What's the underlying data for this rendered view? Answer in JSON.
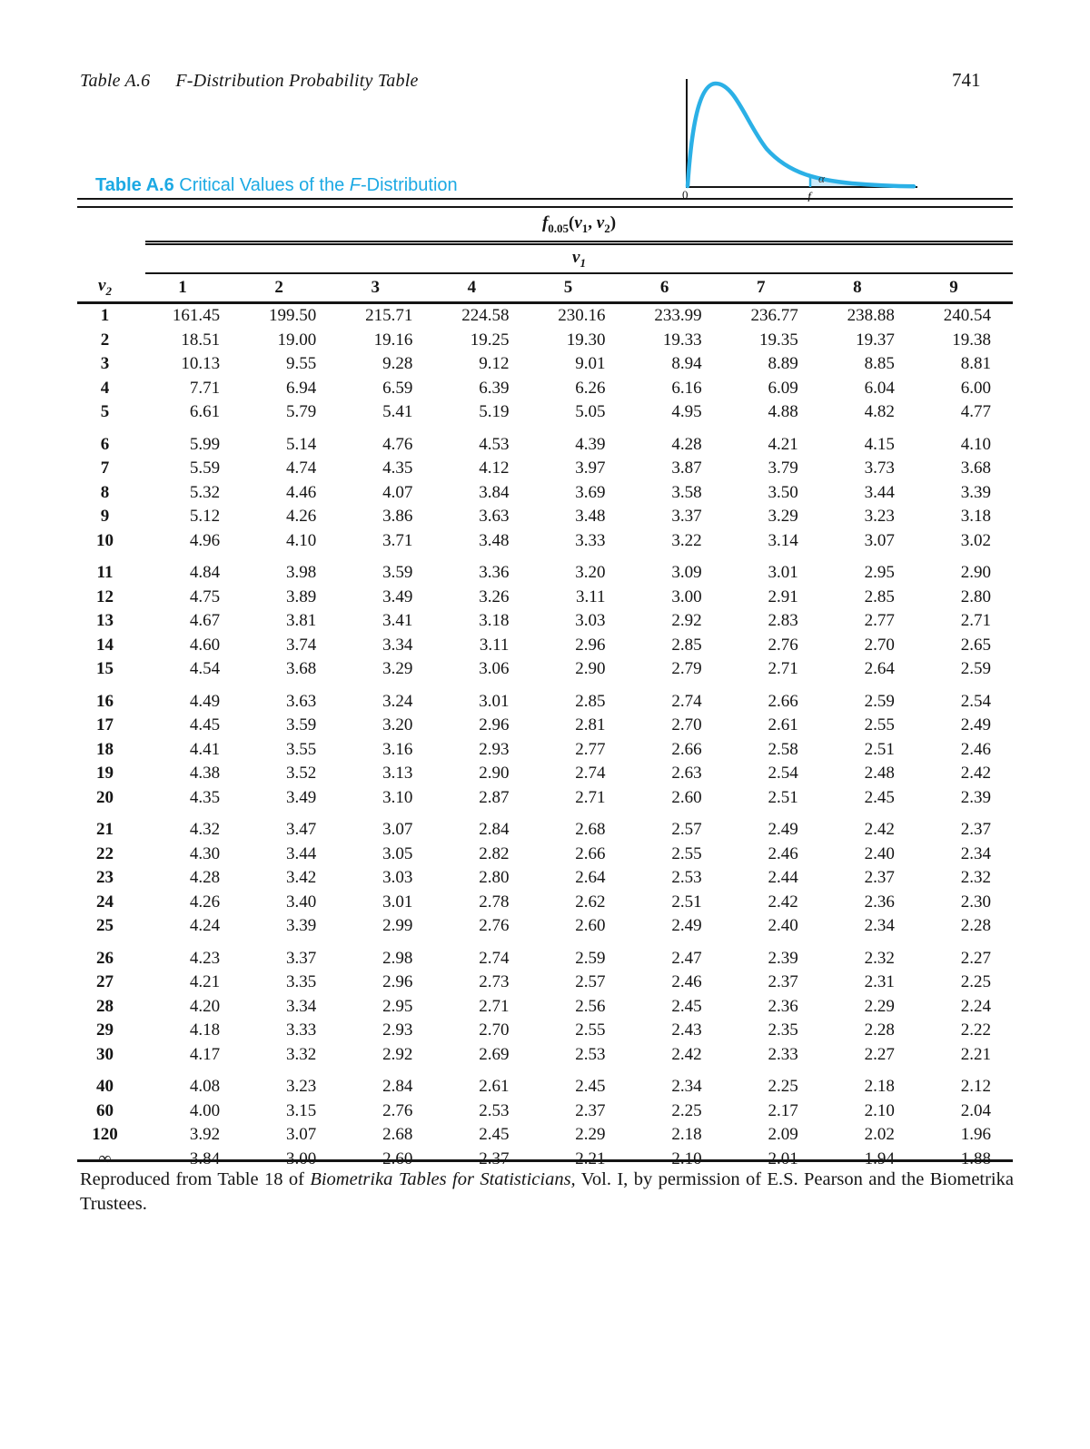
{
  "page": {
    "header_title_left": "Table A.6",
    "header_title_right": "F-Distribution Probability Table",
    "page_number": "741"
  },
  "caption": {
    "bold": "Table A.6",
    "mid": " Critical Values of the ",
    "italic_f": "F",
    "end": "-Distribution"
  },
  "figure": {
    "alpha_label": "α",
    "origin_label": "0",
    "critical_value_label": "f",
    "curve_color": "#2bb0e6",
    "shade_color": "#cdeaf9"
  },
  "table": {
    "func": {
      "f": "f",
      "sub": "0.05",
      "open": "(",
      "v": "v",
      "s1": "1",
      "comma": ", ",
      "s2": "2",
      "close": ")"
    },
    "v1": {
      "v": "v",
      "sub": "1"
    },
    "v2": {
      "v": "v",
      "sub": "2"
    },
    "col_headers": [
      "1",
      "2",
      "3",
      "4",
      "5",
      "6",
      "7",
      "8",
      "9"
    ],
    "row_groups": [
      {
        "rows": [
          {
            "label": "1",
            "values": [
              "161.45",
              "199.50",
              "215.71",
              "224.58",
              "230.16",
              "233.99",
              "236.77",
              "238.88",
              "240.54"
            ]
          },
          {
            "label": "2",
            "values": [
              "18.51",
              "19.00",
              "19.16",
              "19.25",
              "19.30",
              "19.33",
              "19.35",
              "19.37",
              "19.38"
            ]
          },
          {
            "label": "3",
            "values": [
              "10.13",
              "9.55",
              "9.28",
              "9.12",
              "9.01",
              "8.94",
              "8.89",
              "8.85",
              "8.81"
            ]
          },
          {
            "label": "4",
            "values": [
              "7.71",
              "6.94",
              "6.59",
              "6.39",
              "6.26",
              "6.16",
              "6.09",
              "6.04",
              "6.00"
            ]
          },
          {
            "label": "5",
            "values": [
              "6.61",
              "5.79",
              "5.41",
              "5.19",
              "5.05",
              "4.95",
              "4.88",
              "4.82",
              "4.77"
            ]
          }
        ]
      },
      {
        "rows": [
          {
            "label": "6",
            "values": [
              "5.99",
              "5.14",
              "4.76",
              "4.53",
              "4.39",
              "4.28",
              "4.21",
              "4.15",
              "4.10"
            ]
          },
          {
            "label": "7",
            "values": [
              "5.59",
              "4.74",
              "4.35",
              "4.12",
              "3.97",
              "3.87",
              "3.79",
              "3.73",
              "3.68"
            ]
          },
          {
            "label": "8",
            "values": [
              "5.32",
              "4.46",
              "4.07",
              "3.84",
              "3.69",
              "3.58",
              "3.50",
              "3.44",
              "3.39"
            ]
          },
          {
            "label": "9",
            "values": [
              "5.12",
              "4.26",
              "3.86",
              "3.63",
              "3.48",
              "3.37",
              "3.29",
              "3.23",
              "3.18"
            ]
          },
          {
            "label": "10",
            "values": [
              "4.96",
              "4.10",
              "3.71",
              "3.48",
              "3.33",
              "3.22",
              "3.14",
              "3.07",
              "3.02"
            ]
          }
        ]
      },
      {
        "rows": [
          {
            "label": "11",
            "values": [
              "4.84",
              "3.98",
              "3.59",
              "3.36",
              "3.20",
              "3.09",
              "3.01",
              "2.95",
              "2.90"
            ]
          },
          {
            "label": "12",
            "values": [
              "4.75",
              "3.89",
              "3.49",
              "3.26",
              "3.11",
              "3.00",
              "2.91",
              "2.85",
              "2.80"
            ]
          },
          {
            "label": "13",
            "values": [
              "4.67",
              "3.81",
              "3.41",
              "3.18",
              "3.03",
              "2.92",
              "2.83",
              "2.77",
              "2.71"
            ]
          },
          {
            "label": "14",
            "values": [
              "4.60",
              "3.74",
              "3.34",
              "3.11",
              "2.96",
              "2.85",
              "2.76",
              "2.70",
              "2.65"
            ]
          },
          {
            "label": "15",
            "values": [
              "4.54",
              "3.68",
              "3.29",
              "3.06",
              "2.90",
              "2.79",
              "2.71",
              "2.64",
              "2.59"
            ]
          }
        ]
      },
      {
        "rows": [
          {
            "label": "16",
            "values": [
              "4.49",
              "3.63",
              "3.24",
              "3.01",
              "2.85",
              "2.74",
              "2.66",
              "2.59",
              "2.54"
            ]
          },
          {
            "label": "17",
            "values": [
              "4.45",
              "3.59",
              "3.20",
              "2.96",
              "2.81",
              "2.70",
              "2.61",
              "2.55",
              "2.49"
            ]
          },
          {
            "label": "18",
            "values": [
              "4.41",
              "3.55",
              "3.16",
              "2.93",
              "2.77",
              "2.66",
              "2.58",
              "2.51",
              "2.46"
            ]
          },
          {
            "label": "19",
            "values": [
              "4.38",
              "3.52",
              "3.13",
              "2.90",
              "2.74",
              "2.63",
              "2.54",
              "2.48",
              "2.42"
            ]
          },
          {
            "label": "20",
            "values": [
              "4.35",
              "3.49",
              "3.10",
              "2.87",
              "2.71",
              "2.60",
              "2.51",
              "2.45",
              "2.39"
            ]
          }
        ]
      },
      {
        "rows": [
          {
            "label": "21",
            "values": [
              "4.32",
              "3.47",
              "3.07",
              "2.84",
              "2.68",
              "2.57",
              "2.49",
              "2.42",
              "2.37"
            ]
          },
          {
            "label": "22",
            "values": [
              "4.30",
              "3.44",
              "3.05",
              "2.82",
              "2.66",
              "2.55",
              "2.46",
              "2.40",
              "2.34"
            ]
          },
          {
            "label": "23",
            "values": [
              "4.28",
              "3.42",
              "3.03",
              "2.80",
              "2.64",
              "2.53",
              "2.44",
              "2.37",
              "2.32"
            ]
          },
          {
            "label": "24",
            "values": [
              "4.26",
              "3.40",
              "3.01",
              "2.78",
              "2.62",
              "2.51",
              "2.42",
              "2.36",
              "2.30"
            ]
          },
          {
            "label": "25",
            "values": [
              "4.24",
              "3.39",
              "2.99",
              "2.76",
              "2.60",
              "2.49",
              "2.40",
              "2.34",
              "2.28"
            ]
          }
        ]
      },
      {
        "rows": [
          {
            "label": "26",
            "values": [
              "4.23",
              "3.37",
              "2.98",
              "2.74",
              "2.59",
              "2.47",
              "2.39",
              "2.32",
              "2.27"
            ]
          },
          {
            "label": "27",
            "values": [
              "4.21",
              "3.35",
              "2.96",
              "2.73",
              "2.57",
              "2.46",
              "2.37",
              "2.31",
              "2.25"
            ]
          },
          {
            "label": "28",
            "values": [
              "4.20",
              "3.34",
              "2.95",
              "2.71",
              "2.56",
              "2.45",
              "2.36",
              "2.29",
              "2.24"
            ]
          },
          {
            "label": "29",
            "values": [
              "4.18",
              "3.33",
              "2.93",
              "2.70",
              "2.55",
              "2.43",
              "2.35",
              "2.28",
              "2.22"
            ]
          },
          {
            "label": "30",
            "values": [
              "4.17",
              "3.32",
              "2.92",
              "2.69",
              "2.53",
              "2.42",
              "2.33",
              "2.27",
              "2.21"
            ]
          }
        ]
      },
      {
        "rows": [
          {
            "label": "40",
            "values": [
              "4.08",
              "3.23",
              "2.84",
              "2.61",
              "2.45",
              "2.34",
              "2.25",
              "2.18",
              "2.12"
            ]
          },
          {
            "label": "60",
            "values": [
              "4.00",
              "3.15",
              "2.76",
              "2.53",
              "2.37",
              "2.25",
              "2.17",
              "2.10",
              "2.04"
            ]
          },
          {
            "label": "120",
            "values": [
              "3.92",
              "3.07",
              "2.68",
              "2.45",
              "2.29",
              "2.18",
              "2.09",
              "2.02",
              "1.96"
            ]
          },
          {
            "label": "∞",
            "values": [
              "3.84",
              "3.00",
              "2.60",
              "2.37",
              "2.21",
              "2.10",
              "2.01",
              "1.94",
              "1.88"
            ]
          }
        ]
      }
    ]
  },
  "footer": {
    "credit_pre": "Reproduced from Table 18 of ",
    "credit_italic": "Biometrika Tables for Statisticians,",
    "credit_post": " Vol. I, by permission of E.S. Pearson and the Biometrika Trustees."
  }
}
